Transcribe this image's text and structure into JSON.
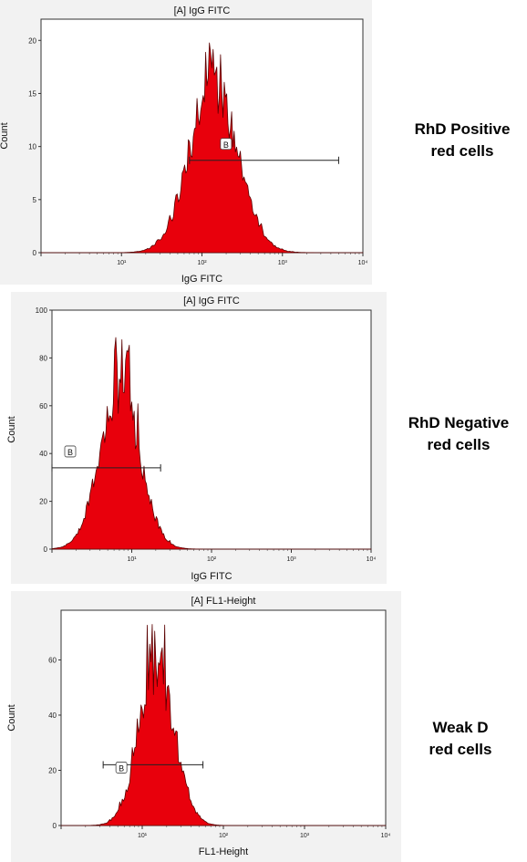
{
  "chart_data": [
    {
      "type": "histogram",
      "title": "[A] IgG FITC",
      "xlabel": "IgG FITC",
      "ylabel": "Count",
      "x_scale": "log",
      "xlim": [
        1,
        10000
      ],
      "x_ticks": [
        "10⁰",
        "10¹",
        "10²",
        "10³",
        "10⁴"
      ],
      "x_tick_display": [
        "",
        "10¹",
        "10²",
        "10³",
        "10⁴"
      ],
      "ylim": [
        0,
        22
      ],
      "y_ticks": [
        0,
        5,
        10,
        15,
        20
      ],
      "peak": {
        "log10_center": 2.15,
        "sd": 0.3,
        "max_count": 21
      },
      "gate": {
        "label": "B",
        "y": 8.7,
        "x_start": 70,
        "x_end": 5000
      },
      "side_label": [
        "RhD Positive",
        "red cells"
      ],
      "fill_color": "#e8000c"
    },
    {
      "type": "histogram",
      "title": "[A] IgG FITC",
      "xlabel": "IgG FITC",
      "ylabel": "Count",
      "x_scale": "log",
      "xlim": [
        1,
        10000
      ],
      "x_ticks": [
        "10⁰",
        "10¹",
        "10²",
        "10³",
        "10⁴"
      ],
      "x_tick_display": [
        "",
        "10¹",
        "10²",
        "10³",
        "10⁴"
      ],
      "ylim": [
        0,
        100
      ],
      "y_ticks": [
        0,
        20,
        40,
        60,
        80,
        100
      ],
      "peak": {
        "log10_center": 0.85,
        "sd": 0.25,
        "max_count": 90
      },
      "gate": {
        "label": "B",
        "y": 34,
        "x_start": 1,
        "x_end": 23
      },
      "side_label": [
        "RhD Negative",
        "red cells"
      ],
      "fill_color": "#e8000c"
    },
    {
      "type": "histogram",
      "title": "[A] FL1-Height",
      "xlabel": "FL1-Height",
      "ylabel": "Count",
      "x_scale": "log",
      "xlim": [
        1,
        10000
      ],
      "x_ticks": [
        "10⁰",
        "10¹",
        "10²",
        "10³",
        "10⁴"
      ],
      "x_tick_display": [
        "",
        "10¹",
        "10²",
        "10³",
        "10⁴"
      ],
      "ylim": [
        0,
        78
      ],
      "y_ticks": [
        0,
        20,
        40,
        60
      ],
      "peak": {
        "log10_center": 1.18,
        "sd": 0.22,
        "max_count": 74
      },
      "gate": {
        "label": "B",
        "y": 22,
        "x_start": 3.3,
        "x_end": 56
      },
      "side_label": [
        "Weak D",
        "red cells"
      ],
      "fill_color": "#e8000c"
    }
  ]
}
